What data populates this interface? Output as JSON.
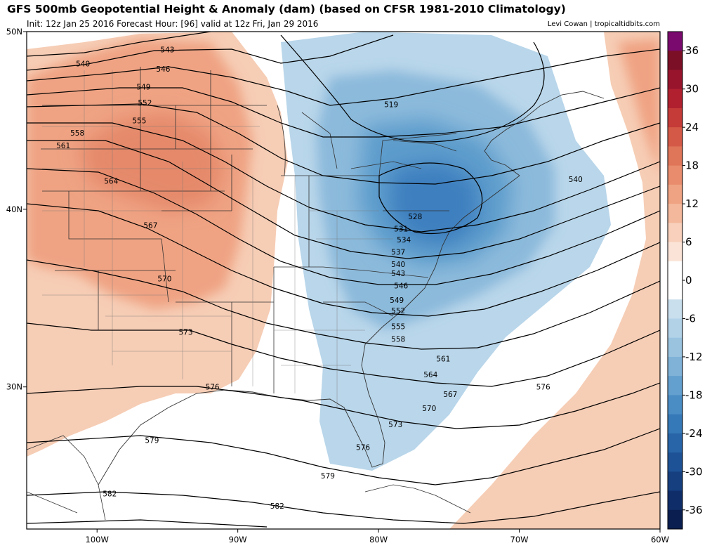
{
  "header": {
    "title": "GFS 500mb Geopotential Height & Anomaly (dam) (based on CFSR 1981-2010 Climatology)",
    "subtitle": "Init: 12z Jan 25 2016   Forecast Hour: [96]   valid at 12z Fri, Jan 29 2016",
    "credit": "Levi Cowan | tropicaltidbits.com"
  },
  "map": {
    "lon_range": [
      -105,
      -60
    ],
    "lat_range": [
      22,
      50
    ],
    "lon_ticks": [
      {
        "label": "100W",
        "lon": -100
      },
      {
        "label": "90W",
        "lon": -90
      },
      {
        "label": "80W",
        "lon": -80
      },
      {
        "label": "70W",
        "lon": -70
      },
      {
        "label": "60W",
        "lon": -60
      }
    ],
    "lat_ticks": [
      {
        "label": "50N",
        "lat": 50
      },
      {
        "label": "40N",
        "lat": 40
      },
      {
        "label": "30N",
        "lat": 30
      }
    ],
    "colors": {
      "positive_light": "#f6cdb5",
      "positive_mid": "#efa383",
      "positive_strong": "#e5896b",
      "negative_light": "#b9d6ea",
      "negative_mid": "#8cbadb",
      "negative_strong": "#5d9ccc",
      "negative_core": "#3d7fbf"
    },
    "contour_labels": [
      {
        "text": "540",
        "lon": -101.0,
        "lat": 48.2
      },
      {
        "text": "543",
        "lon": -95.0,
        "lat": 49.0
      },
      {
        "text": "546",
        "lon": -95.3,
        "lat": 47.9
      },
      {
        "text": "549",
        "lon": -96.7,
        "lat": 46.9
      },
      {
        "text": "552",
        "lon": -96.6,
        "lat": 46.0
      },
      {
        "text": "555",
        "lon": -97.0,
        "lat": 45.0
      },
      {
        "text": "558",
        "lon": -101.4,
        "lat": 44.3
      },
      {
        "text": "561",
        "lon": -102.4,
        "lat": 43.6
      },
      {
        "text": "564",
        "lon": -99.0,
        "lat": 41.6
      },
      {
        "text": "567",
        "lon": -96.2,
        "lat": 39.1
      },
      {
        "text": "570",
        "lon": -95.2,
        "lat": 36.1
      },
      {
        "text": "573",
        "lon": -93.7,
        "lat": 33.1
      },
      {
        "text": "576",
        "lon": -91.8,
        "lat": 30.0
      },
      {
        "text": "579",
        "lon": -96.1,
        "lat": 27.0
      },
      {
        "text": "582",
        "lon": -99.1,
        "lat": 24.0
      },
      {
        "text": "582",
        "lon": -87.2,
        "lat": 23.3
      },
      {
        "text": "579",
        "lon": -83.6,
        "lat": 25.0
      },
      {
        "text": "576",
        "lon": -81.1,
        "lat": 26.6
      },
      {
        "text": "573",
        "lon": -78.8,
        "lat": 27.9
      },
      {
        "text": "570",
        "lon": -76.4,
        "lat": 28.8
      },
      {
        "text": "567",
        "lon": -74.9,
        "lat": 29.6
      },
      {
        "text": "564",
        "lon": -76.3,
        "lat": 30.7
      },
      {
        "text": "561",
        "lon": -75.4,
        "lat": 31.6
      },
      {
        "text": "558",
        "lon": -78.6,
        "lat": 32.7
      },
      {
        "text": "555",
        "lon": -78.6,
        "lat": 33.4
      },
      {
        "text": "552",
        "lon": -78.6,
        "lat": 34.3
      },
      {
        "text": "549",
        "lon": -78.7,
        "lat": 34.9
      },
      {
        "text": "546",
        "lon": -78.4,
        "lat": 35.7
      },
      {
        "text": "543",
        "lon": -78.6,
        "lat": 36.4
      },
      {
        "text": "540",
        "lon": -78.6,
        "lat": 36.9
      },
      {
        "text": "537",
        "lon": -78.6,
        "lat": 37.6
      },
      {
        "text": "534",
        "lon": -78.2,
        "lat": 38.3
      },
      {
        "text": "531",
        "lon": -78.4,
        "lat": 38.9
      },
      {
        "text": "528",
        "lon": -77.4,
        "lat": 39.6
      },
      {
        "text": "519",
        "lon": -79.1,
        "lat": 45.9
      },
      {
        "text": "540",
        "lon": -66.0,
        "lat": 41.7
      },
      {
        "text": "576",
        "lon": -68.3,
        "lat": 30.0
      }
    ]
  },
  "colorbar": {
    "ticks": [
      {
        "label": "36",
        "value": 36
      },
      {
        "label": "30",
        "value": 30
      },
      {
        "label": "24",
        "value": 24
      },
      {
        "label": "18",
        "value": 18
      },
      {
        "label": "12",
        "value": 12
      },
      {
        "label": "6",
        "value": 6
      },
      {
        "label": "0",
        "value": 0
      },
      {
        "label": "-6",
        "value": -6
      },
      {
        "label": "-12",
        "value": -12
      },
      {
        "label": "-18",
        "value": -18
      },
      {
        "label": "-24",
        "value": -24
      },
      {
        "label": "-30",
        "value": -30
      },
      {
        "label": "-36",
        "value": -36
      }
    ],
    "bins": [
      {
        "from": 36,
        "to": 39,
        "color": "#7a0a6e"
      },
      {
        "from": 33,
        "to": 36,
        "color": "#7b0f25"
      },
      {
        "from": 30,
        "to": 33,
        "color": "#98142d"
      },
      {
        "from": 27,
        "to": 30,
        "color": "#b0202f"
      },
      {
        "from": 24,
        "to": 27,
        "color": "#c43b38"
      },
      {
        "from": 21,
        "to": 24,
        "color": "#d45a47"
      },
      {
        "from": 18,
        "to": 21,
        "color": "#df7559"
      },
      {
        "from": 15,
        "to": 18,
        "color": "#e88c6d"
      },
      {
        "from": 12,
        "to": 15,
        "color": "#efa383"
      },
      {
        "from": 9,
        "to": 12,
        "color": "#f4b99c"
      },
      {
        "from": 6,
        "to": 9,
        "color": "#f8d0bb"
      },
      {
        "from": 3,
        "to": 6,
        "color": "#fbe4d7"
      },
      {
        "from": 0,
        "to": 3,
        "color": "#ffffff"
      },
      {
        "from": -3,
        "to": 0,
        "color": "#ffffff"
      },
      {
        "from": -6,
        "to": -3,
        "color": "#c9dfee"
      },
      {
        "from": -9,
        "to": -6,
        "color": "#b2d2e8"
      },
      {
        "from": -12,
        "to": -9,
        "color": "#9ac3e0"
      },
      {
        "from": -15,
        "to": -12,
        "color": "#80b2d8"
      },
      {
        "from": -18,
        "to": -15,
        "color": "#63a0cf"
      },
      {
        "from": -21,
        "to": -18,
        "color": "#4a8dc5"
      },
      {
        "from": -24,
        "to": -21,
        "color": "#3679b8"
      },
      {
        "from": -27,
        "to": -24,
        "color": "#2865a8"
      },
      {
        "from": -30,
        "to": -27,
        "color": "#1e5296"
      },
      {
        "from": -33,
        "to": -30,
        "color": "#163f80"
      },
      {
        "from": -36,
        "to": -33,
        "color": "#0f2e69"
      },
      {
        "from": -39,
        "to": -36,
        "color": "#0a1e50"
      }
    ]
  }
}
